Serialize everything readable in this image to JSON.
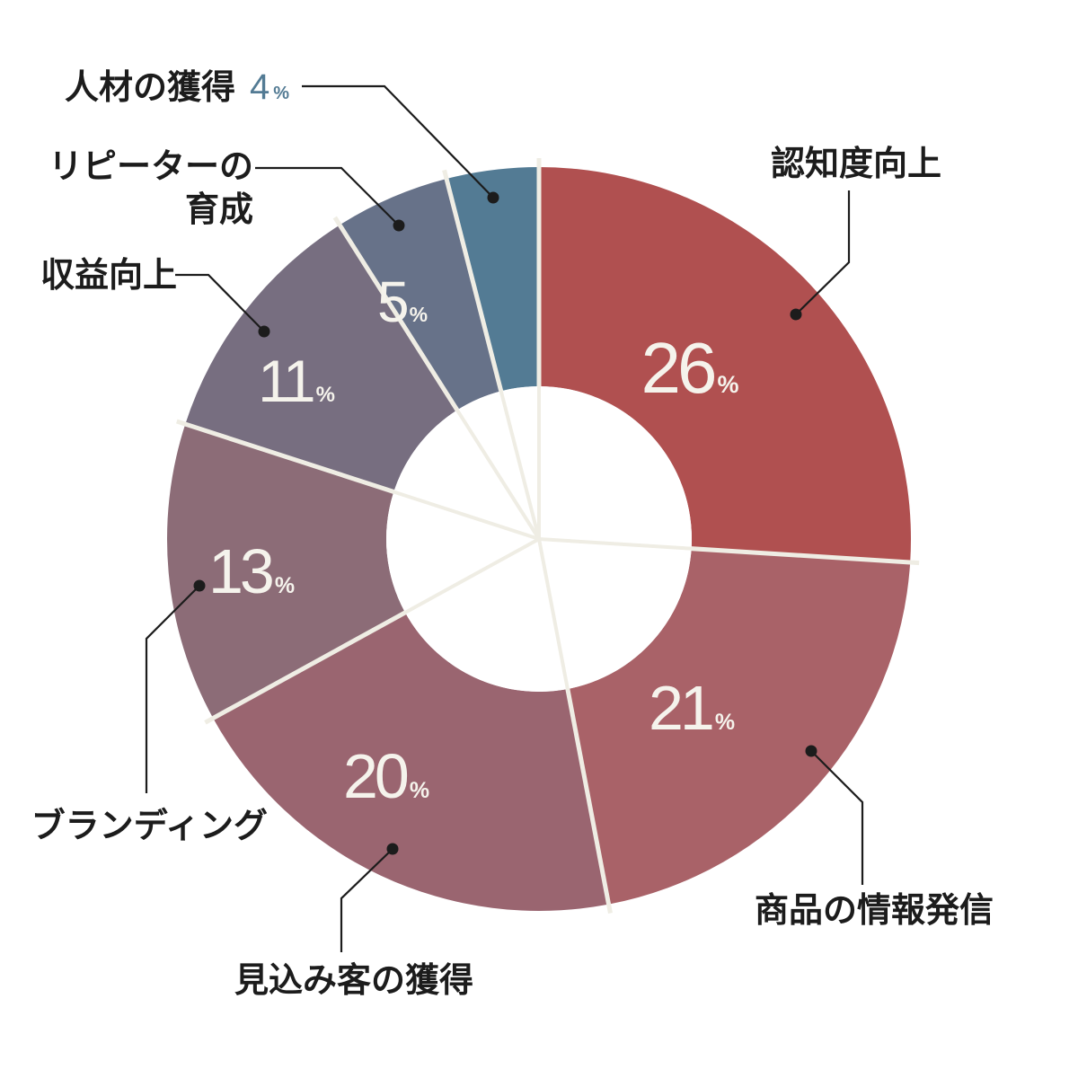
{
  "chart_data": {
    "type": "pie",
    "variant": "donut",
    "title": "",
    "unit": "%",
    "slices": [
      {
        "label": "認知度向上",
        "value": 26,
        "color": "#b05050"
      },
      {
        "label": "商品の情報発信",
        "value": 21,
        "color": "#a96268"
      },
      {
        "label": "見込み客の獲得",
        "value": 20,
        "color": "#9a6570"
      },
      {
        "label": "ブランディング",
        "value": 13,
        "color": "#8c6c77"
      },
      {
        "label": "収益向上",
        "value": 11,
        "color": "#776e80"
      },
      {
        "label": "リピーターの育成",
        "label_lines": [
          "リピーターの",
          "育成"
        ],
        "value": 5,
        "color": "#677289"
      },
      {
        "label": "人材の獲得",
        "value": 4,
        "color": "#537b94"
      }
    ],
    "separator_color": "#efede4"
  }
}
